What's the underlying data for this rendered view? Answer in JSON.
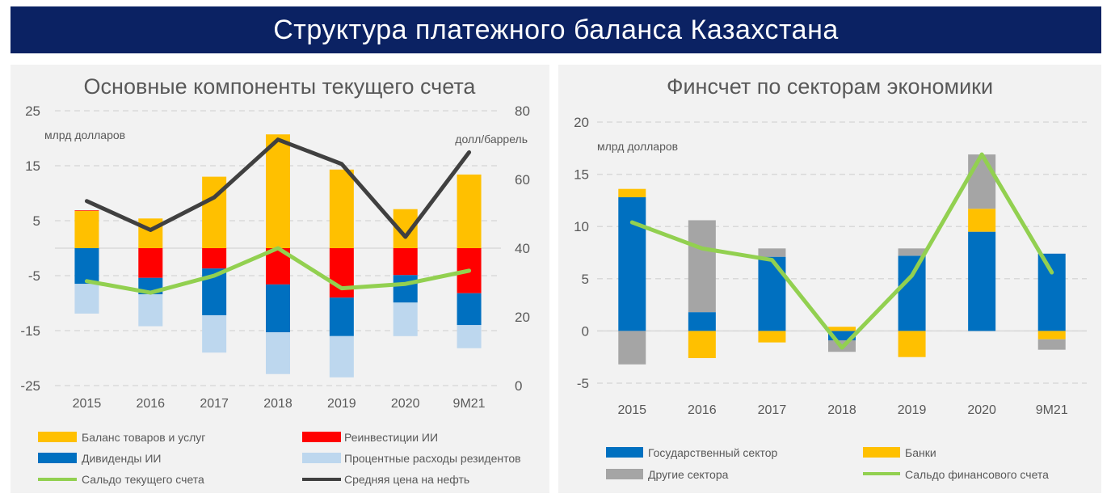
{
  "title": "Структура платежного баланса Казахстана",
  "chart_data": [
    {
      "type": "bar",
      "stacked": true,
      "title": "Основные компоненты текущего счета",
      "ylabel": "млрд долларов",
      "y2label": "долл/баррель",
      "ylim": [
        -25,
        25
      ],
      "yticks": [
        25,
        15,
        5,
        -5,
        -15,
        -25
      ],
      "y2lim": [
        0,
        80
      ],
      "y2ticks": [
        80,
        60,
        40,
        20,
        0
      ],
      "grid": true,
      "legend_position": "bottom",
      "categories": [
        "2015",
        "2016",
        "2017",
        "2018",
        "2019",
        "2020",
        "9M21"
      ],
      "series": [
        {
          "name": "Баланс товаров и услуг",
          "kind": "bar",
          "color": "#ffc000",
          "values": [
            6.8,
            5.4,
            13.0,
            20.7,
            14.3,
            7.1,
            13.4
          ]
        },
        {
          "name": "Реинвестиции ИИ",
          "kind": "bar",
          "color": "#ff0000",
          "values": [
            0.1,
            -5.4,
            -3.7,
            -6.6,
            -9.0,
            -4.9,
            -8.2
          ]
        },
        {
          "name": "Дивиденды ИИ",
          "kind": "bar",
          "color": "#0070c0",
          "values": [
            -6.5,
            -3.0,
            -8.5,
            -8.7,
            -7.0,
            -5.0,
            -5.8
          ]
        },
        {
          "name": "Процентные расходы резидентов",
          "kind": "bar",
          "color": "#bdd7ee",
          "values": [
            -5.4,
            -5.8,
            -6.8,
            -7.6,
            -7.5,
            -6.1,
            -4.2
          ]
        },
        {
          "name": "Сальдо текущего счета",
          "kind": "line",
          "axis": "left",
          "color": "#92d050",
          "values": [
            -6.0,
            -8.1,
            -5.0,
            0.0,
            -7.3,
            -6.5,
            -4.1
          ]
        },
        {
          "name": "Средняя цена на нефть",
          "kind": "line",
          "axis": "right",
          "color": "#404040",
          "values": [
            53.7,
            45.3,
            54.8,
            71.6,
            64.5,
            43.3,
            67.9
          ]
        }
      ]
    },
    {
      "type": "bar",
      "stacked": true,
      "title": "Финсчет по секторам экономики",
      "ylabel": "млрд долларов",
      "ylim": [
        -5,
        20
      ],
      "yticks": [
        20,
        15,
        10,
        5,
        0,
        -5
      ],
      "grid": true,
      "legend_position": "bottom",
      "categories": [
        "2015",
        "2016",
        "2017",
        "2018",
        "2019",
        "2020",
        "9M21"
      ],
      "series": [
        {
          "name": "Государственный сектор",
          "kind": "bar",
          "color": "#0070c0",
          "values": [
            12.8,
            1.8,
            7.1,
            -0.9,
            7.2,
            9.5,
            7.4
          ]
        },
        {
          "name": "Банки",
          "kind": "bar",
          "color": "#ffc000",
          "values": [
            0.8,
            -2.6,
            -1.1,
            0.4,
            -2.5,
            2.2,
            -0.8
          ]
        },
        {
          "name": "Другие сектора",
          "kind": "bar",
          "color": "#a5a5a5",
          "values": [
            -3.2,
            8.8,
            0.8,
            -1.1,
            0.7,
            5.2,
            -1.0
          ]
        },
        {
          "name": "Сальдо финансового счета",
          "kind": "line",
          "axis": "left",
          "color": "#92d050",
          "values": [
            10.4,
            7.9,
            6.8,
            -1.6,
            5.3,
            16.9,
            5.6
          ]
        }
      ]
    }
  ]
}
